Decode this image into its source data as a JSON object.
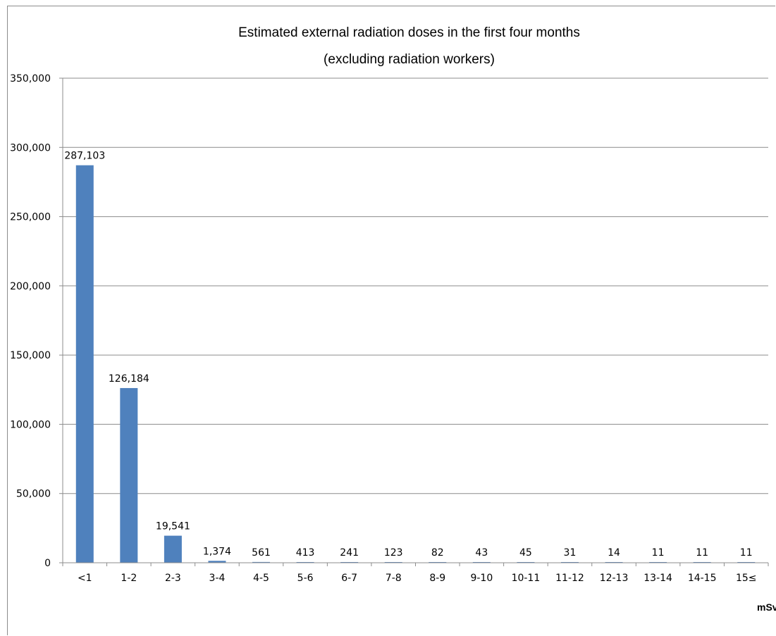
{
  "chart_data": {
    "type": "bar",
    "title": "Estimated external radiation doses in the first four months",
    "subtitle": "(excluding radiation workers)",
    "xlabel": "mSv",
    "ylabel": "",
    "ylim": [
      0,
      350000
    ],
    "yticks": [
      0,
      50000,
      100000,
      150000,
      200000,
      250000,
      300000,
      350000
    ],
    "ytick_labels": [
      "0",
      "50,000",
      "100,000",
      "150,000",
      "200,000",
      "250,000",
      "300,000",
      "350,000"
    ],
    "grid": true,
    "legend": "none",
    "bar_color": "#4f81bd",
    "categories": [
      "<1",
      "1-2",
      "2-3",
      "3-4",
      "4-5",
      "5-6",
      "6-7",
      "7-8",
      "8-9",
      "9-10",
      "10-11",
      "11-12",
      "12-13",
      "13-14",
      "14-15",
      "15≤"
    ],
    "values": [
      287103,
      126184,
      19541,
      1374,
      561,
      413,
      241,
      123,
      82,
      43,
      45,
      31,
      14,
      11,
      11,
      11
    ],
    "data_labels": [
      "287,103",
      "126,184",
      "19,541",
      "1,374",
      "561",
      "413",
      "241",
      "123",
      "82",
      "43",
      "45",
      "31",
      "14",
      "11",
      "11",
      "11"
    ]
  }
}
